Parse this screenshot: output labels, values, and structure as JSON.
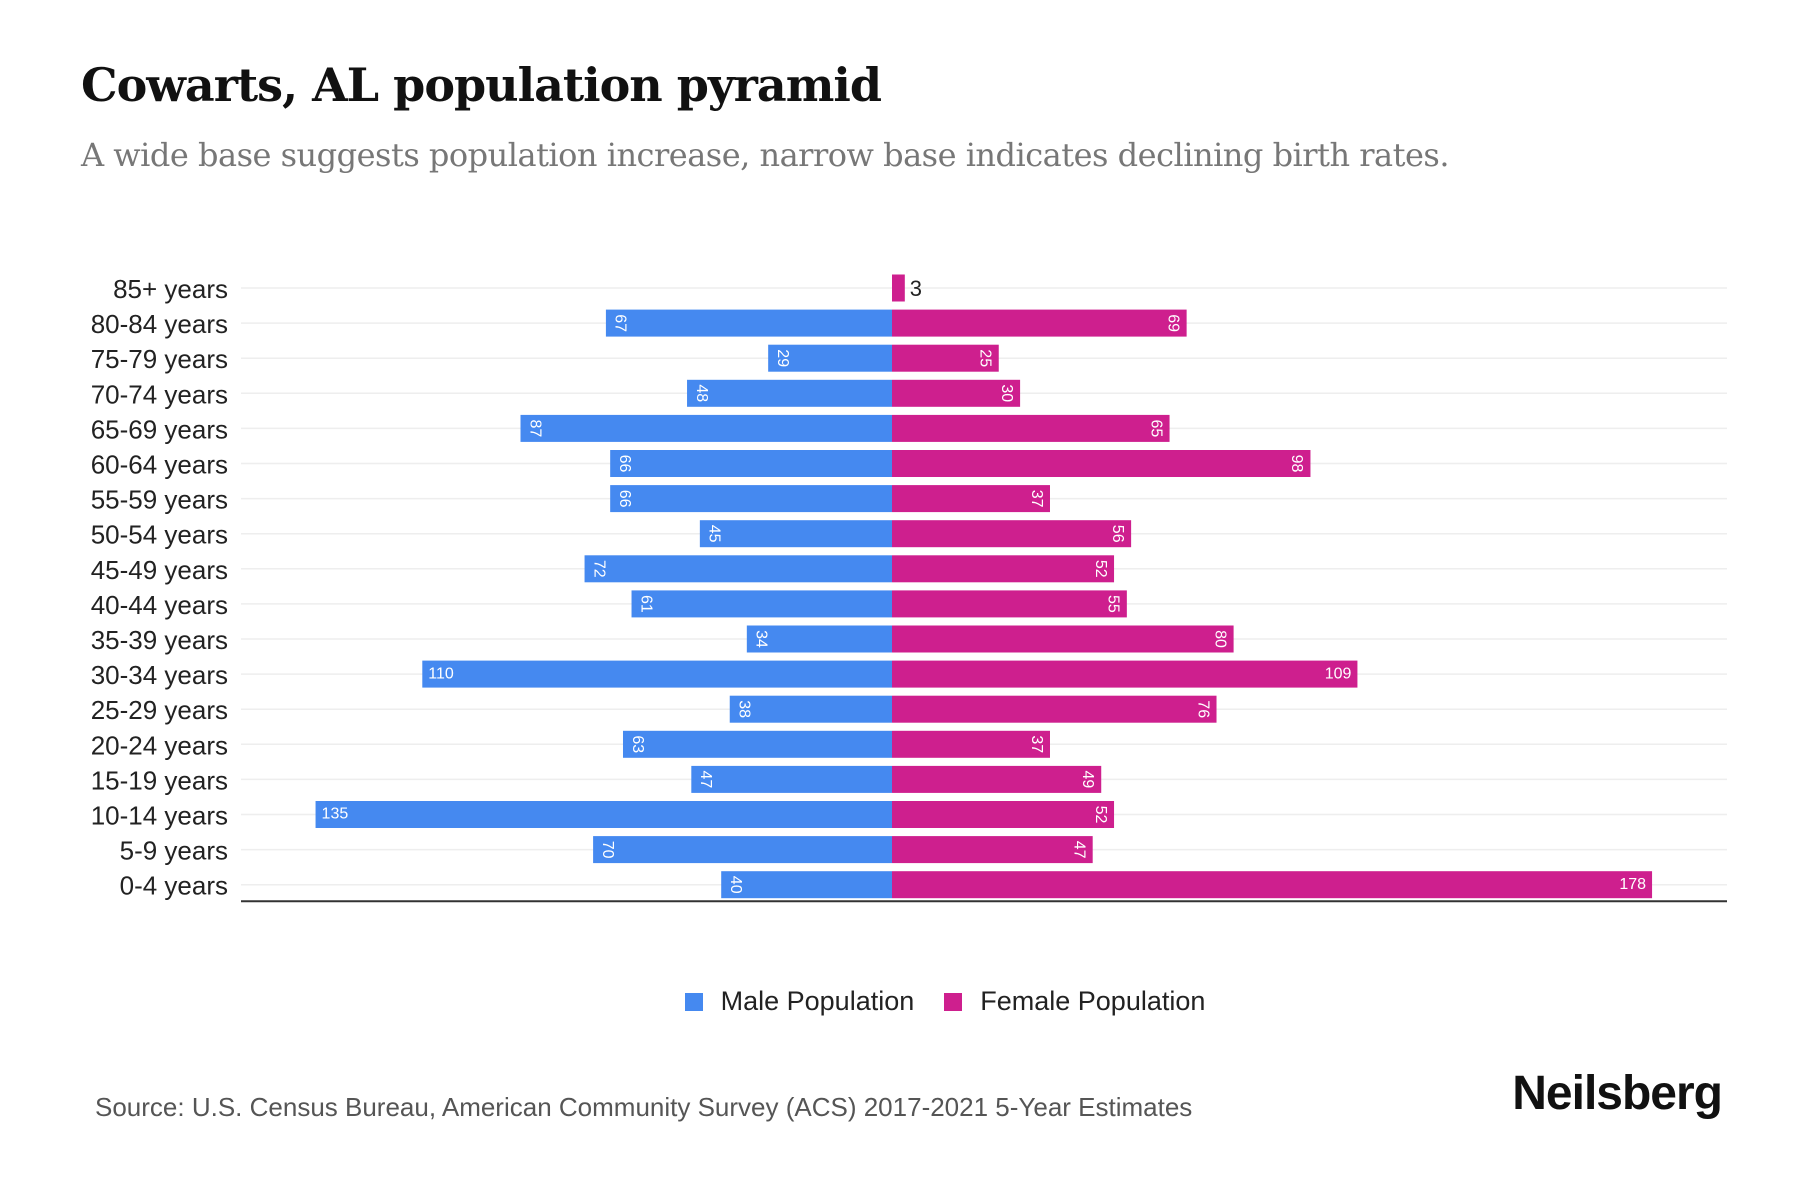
{
  "title": "Cowarts, AL population pyramid",
  "subtitle": "A wide base suggests population increase, narrow base indicates declining birth rates.",
  "source": "Source: U.S. Census Bureau, American Community Survey (ACS) 2017-2021 5-Year Estimates",
  "logo": "Neilsberg",
  "colors": {
    "male": "#4589F0",
    "female": "#CE1F8E"
  },
  "chart_data": {
    "type": "bar",
    "orientation": "horizontal-pyramid",
    "categories": [
      "85+ years",
      "80-84 years",
      "75-79 years",
      "70-74 years",
      "65-69 years",
      "60-64 years",
      "55-59 years",
      "50-54 years",
      "45-49 years",
      "40-44 years",
      "35-39 years",
      "30-34 years",
      "25-29 years",
      "20-24 years",
      "15-19 years",
      "10-14 years",
      "5-9 years",
      "0-4 years"
    ],
    "series": [
      {
        "name": "Male Population",
        "values": [
          0,
          67,
          29,
          48,
          87,
          66,
          66,
          45,
          72,
          61,
          34,
          110,
          38,
          63,
          47,
          135,
          70,
          40
        ]
      },
      {
        "name": "Female Population",
        "values": [
          3,
          69,
          25,
          30,
          65,
          98,
          37,
          56,
          52,
          55,
          80,
          109,
          76,
          37,
          49,
          52,
          47,
          178
        ]
      }
    ],
    "xlim": [
      -150,
      195
    ],
    "grid": true,
    "legend_position": "bottom"
  }
}
